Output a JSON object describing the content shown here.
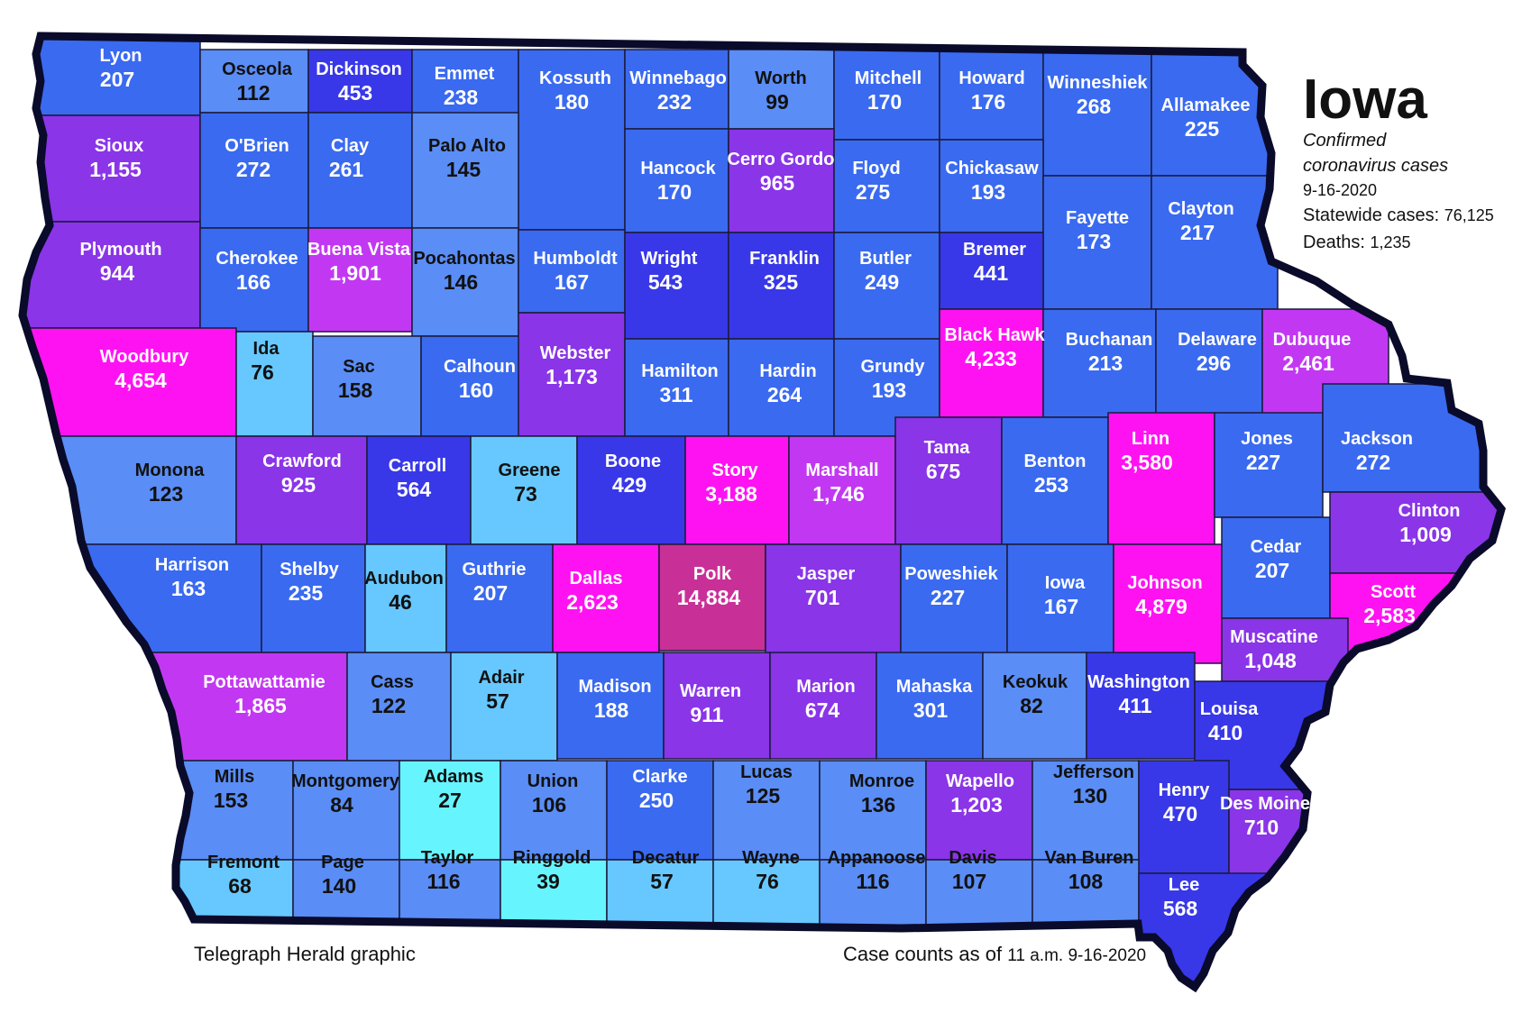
{
  "title": "Iowa",
  "subtitle_line1": "Confirmed",
  "subtitle_line2": "coronavirus cases",
  "date": "9-16-2020",
  "statewide_label": "Statewide cases:",
  "statewide_value": "76,125",
  "deaths_label": "Deaths:",
  "deaths_value": "1,235",
  "credit": "Telegraph Herald graphic",
  "asof_label": "Case counts as of",
  "asof_value": "11 a.m. 9-16-2020",
  "colors": {
    "background": "#ffffff",
    "border": "#0a0a2a",
    "cyan": "#66f5ff",
    "light_blue": "#66c8ff",
    "med_blue": "#5a8df5",
    "blue": "#3a6af0",
    "royal": "#3a55f2",
    "indigo": "#3838e8",
    "purple": "#8a35e8",
    "violet": "#c238f2",
    "magenta": "#ff12f2",
    "polk": "#c83098"
  },
  "counties": [
    {
      "name": "Lyon",
      "count": "207",
      "fill": "blue",
      "text": "lite"
    },
    {
      "name": "Osceola",
      "count": "112",
      "fill": "med_blue",
      "text": "dark"
    },
    {
      "name": "Dickinson",
      "count": "453",
      "fill": "indigo",
      "text": "lite"
    },
    {
      "name": "Emmet",
      "count": "238",
      "fill": "blue",
      "text": "lite"
    },
    {
      "name": "Kossuth",
      "count": "180",
      "fill": "blue",
      "text": "lite"
    },
    {
      "name": "Winnebago",
      "count": "232",
      "fill": "blue",
      "text": "lite"
    },
    {
      "name": "Worth",
      "count": "99",
      "fill": "med_blue",
      "text": "dark"
    },
    {
      "name": "Mitchell",
      "count": "170",
      "fill": "blue",
      "text": "lite"
    },
    {
      "name": "Howard",
      "count": "176",
      "fill": "blue",
      "text": "lite"
    },
    {
      "name": "Winneshiek",
      "count": "268",
      "fill": "blue",
      "text": "lite"
    },
    {
      "name": "Allamakee",
      "count": "225",
      "fill": "blue",
      "text": "lite"
    },
    {
      "name": "Sioux",
      "count": "1,155",
      "fill": "purple",
      "text": "lite"
    },
    {
      "name": "O'Brien",
      "count": "272",
      "fill": "blue",
      "text": "lite"
    },
    {
      "name": "Clay",
      "count": "261",
      "fill": "blue",
      "text": "lite"
    },
    {
      "name": "Palo Alto",
      "count": "145",
      "fill": "med_blue",
      "text": "dark"
    },
    {
      "name": "Hancock",
      "count": "170",
      "fill": "blue",
      "text": "lite"
    },
    {
      "name": "Cerro Gordo",
      "count": "965",
      "fill": "purple",
      "text": "lite"
    },
    {
      "name": "Floyd",
      "count": "275",
      "fill": "blue",
      "text": "lite"
    },
    {
      "name": "Chickasaw",
      "count": "193",
      "fill": "blue",
      "text": "lite"
    },
    {
      "name": "Fayette",
      "count": "173",
      "fill": "blue",
      "text": "lite"
    },
    {
      "name": "Clayton",
      "count": "217",
      "fill": "blue",
      "text": "lite"
    },
    {
      "name": "Plymouth",
      "count": "944",
      "fill": "purple",
      "text": "lite"
    },
    {
      "name": "Cherokee",
      "count": "166",
      "fill": "blue",
      "text": "lite"
    },
    {
      "name": "Buena Vista",
      "count": "1,901",
      "fill": "violet",
      "text": "lite"
    },
    {
      "name": "Pocahontas",
      "count": "146",
      "fill": "med_blue",
      "text": "dark"
    },
    {
      "name": "Humboldt",
      "count": "167",
      "fill": "blue",
      "text": "lite"
    },
    {
      "name": "Wright",
      "count": "543",
      "fill": "indigo",
      "text": "lite"
    },
    {
      "name": "Franklin",
      "count": "325",
      "fill": "indigo",
      "text": "lite"
    },
    {
      "name": "Butler",
      "count": "249",
      "fill": "blue",
      "text": "lite"
    },
    {
      "name": "Bremer",
      "count": "441",
      "fill": "indigo",
      "text": "lite"
    },
    {
      "name": "Woodbury",
      "count": "4,654",
      "fill": "magenta",
      "text": "lite"
    },
    {
      "name": "Ida",
      "count": "76",
      "fill": "light_blue",
      "text": "dark"
    },
    {
      "name": "Sac",
      "count": "158",
      "fill": "med_blue",
      "text": "dark"
    },
    {
      "name": "Calhoun",
      "count": "160",
      "fill": "blue",
      "text": "lite"
    },
    {
      "name": "Webster",
      "count": "1,173",
      "fill": "purple",
      "text": "lite"
    },
    {
      "name": "Hamilton",
      "count": "311",
      "fill": "blue",
      "text": "lite"
    },
    {
      "name": "Hardin",
      "count": "264",
      "fill": "blue",
      "text": "lite"
    },
    {
      "name": "Grundy",
      "count": "193",
      "fill": "blue",
      "text": "lite"
    },
    {
      "name": "Black Hawk",
      "count": "4,233",
      "fill": "magenta",
      "text": "lite"
    },
    {
      "name": "Buchanan",
      "count": "213",
      "fill": "blue",
      "text": "lite"
    },
    {
      "name": "Delaware",
      "count": "296",
      "fill": "blue",
      "text": "lite"
    },
    {
      "name": "Dubuque",
      "count": "2,461",
      "fill": "violet",
      "text": "lite"
    },
    {
      "name": "Monona",
      "count": "123",
      "fill": "med_blue",
      "text": "dark"
    },
    {
      "name": "Crawford",
      "count": "925",
      "fill": "purple",
      "text": "lite"
    },
    {
      "name": "Carroll",
      "count": "564",
      "fill": "indigo",
      "text": "lite"
    },
    {
      "name": "Greene",
      "count": "73",
      "fill": "light_blue",
      "text": "dark"
    },
    {
      "name": "Boone",
      "count": "429",
      "fill": "indigo",
      "text": "lite"
    },
    {
      "name": "Story",
      "count": "3,188",
      "fill": "magenta",
      "text": "lite"
    },
    {
      "name": "Marshall",
      "count": "1,746",
      "fill": "violet",
      "text": "lite"
    },
    {
      "name": "Tama",
      "count": "675",
      "fill": "purple",
      "text": "lite"
    },
    {
      "name": "Benton",
      "count": "253",
      "fill": "blue",
      "text": "lite"
    },
    {
      "name": "Linn",
      "count": "3,580",
      "fill": "magenta",
      "text": "lite"
    },
    {
      "name": "Jones",
      "count": "227",
      "fill": "blue",
      "text": "lite"
    },
    {
      "name": "Jackson",
      "count": "272",
      "fill": "blue",
      "text": "lite"
    },
    {
      "name": "Harrison",
      "count": "163",
      "fill": "blue",
      "text": "lite"
    },
    {
      "name": "Shelby",
      "count": "235",
      "fill": "blue",
      "text": "lite"
    },
    {
      "name": "Audubon",
      "count": "46",
      "fill": "light_blue",
      "text": "dark"
    },
    {
      "name": "Guthrie",
      "count": "207",
      "fill": "blue",
      "text": "lite"
    },
    {
      "name": "Dallas",
      "count": "2,623",
      "fill": "magenta",
      "text": "lite"
    },
    {
      "name": "Polk",
      "count": "14,884",
      "fill": "polk",
      "text": "lite"
    },
    {
      "name": "Jasper",
      "count": "701",
      "fill": "purple",
      "text": "lite"
    },
    {
      "name": "Poweshiek",
      "count": "227",
      "fill": "blue",
      "text": "lite"
    },
    {
      "name": "Iowa",
      "count": "167",
      "fill": "blue",
      "text": "lite"
    },
    {
      "name": "Johnson",
      "count": "4,879",
      "fill": "magenta",
      "text": "lite"
    },
    {
      "name": "Cedar",
      "count": "207",
      "fill": "blue",
      "text": "lite"
    },
    {
      "name": "Clinton",
      "count": "1,009",
      "fill": "purple",
      "text": "lite"
    },
    {
      "name": "Scott",
      "count": "2,583",
      "fill": "magenta",
      "text": "lite"
    },
    {
      "name": "Muscatine",
      "count": "1,048",
      "fill": "purple",
      "text": "lite"
    },
    {
      "name": "Pottawattamie",
      "count": "1,865",
      "fill": "violet",
      "text": "lite"
    },
    {
      "name": "Cass",
      "count": "122",
      "fill": "med_blue",
      "text": "dark"
    },
    {
      "name": "Adair",
      "count": "57",
      "fill": "light_blue",
      "text": "dark"
    },
    {
      "name": "Madison",
      "count": "188",
      "fill": "blue",
      "text": "lite"
    },
    {
      "name": "Warren",
      "count": "911",
      "fill": "purple",
      "text": "lite"
    },
    {
      "name": "Marion",
      "count": "674",
      "fill": "purple",
      "text": "lite"
    },
    {
      "name": "Mahaska",
      "count": "301",
      "fill": "blue",
      "text": "lite"
    },
    {
      "name": "Keokuk",
      "count": "82",
      "fill": "med_blue",
      "text": "dark"
    },
    {
      "name": "Washington",
      "count": "411",
      "fill": "indigo",
      "text": "lite"
    },
    {
      "name": "Louisa",
      "count": "410",
      "fill": "indigo",
      "text": "lite"
    },
    {
      "name": "Mills",
      "count": "153",
      "fill": "med_blue",
      "text": "dark"
    },
    {
      "name": "Montgomery",
      "count": "84",
      "fill": "med_blue",
      "text": "dark"
    },
    {
      "name": "Adams",
      "count": "27",
      "fill": "cyan",
      "text": "dark"
    },
    {
      "name": "Union",
      "count": "106",
      "fill": "med_blue",
      "text": "dark"
    },
    {
      "name": "Clarke",
      "count": "250",
      "fill": "blue",
      "text": "lite"
    },
    {
      "name": "Lucas",
      "count": "125",
      "fill": "med_blue",
      "text": "dark"
    },
    {
      "name": "Monroe",
      "count": "136",
      "fill": "med_blue",
      "text": "dark"
    },
    {
      "name": "Wapello",
      "count": "1,203",
      "fill": "purple",
      "text": "lite"
    },
    {
      "name": "Jefferson",
      "count": "130",
      "fill": "med_blue",
      "text": "dark"
    },
    {
      "name": "Henry",
      "count": "470",
      "fill": "indigo",
      "text": "lite"
    },
    {
      "name": "Des Moine",
      "count": "710",
      "fill": "purple",
      "text": "lite"
    },
    {
      "name": "Fremont",
      "count": "68",
      "fill": "light_blue",
      "text": "dark"
    },
    {
      "name": "Page",
      "count": "140",
      "fill": "med_blue",
      "text": "dark"
    },
    {
      "name": "Taylor",
      "count": "116",
      "fill": "med_blue",
      "text": "dark"
    },
    {
      "name": "Ringgold",
      "count": "39",
      "fill": "cyan",
      "text": "dark"
    },
    {
      "name": "Decatur",
      "count": "57",
      "fill": "light_blue",
      "text": "dark"
    },
    {
      "name": "Wayne",
      "count": "76",
      "fill": "light_blue",
      "text": "dark"
    },
    {
      "name": "Appanoose",
      "count": "116",
      "fill": "med_blue",
      "text": "dark"
    },
    {
      "name": "Davis",
      "count": "107",
      "fill": "med_blue",
      "text": "dark"
    },
    {
      "name": "Van Buren",
      "count": "108",
      "fill": "med_blue",
      "text": "dark"
    },
    {
      "name": "Lee",
      "count": "568",
      "fill": "indigo",
      "text": "lite"
    }
  ]
}
